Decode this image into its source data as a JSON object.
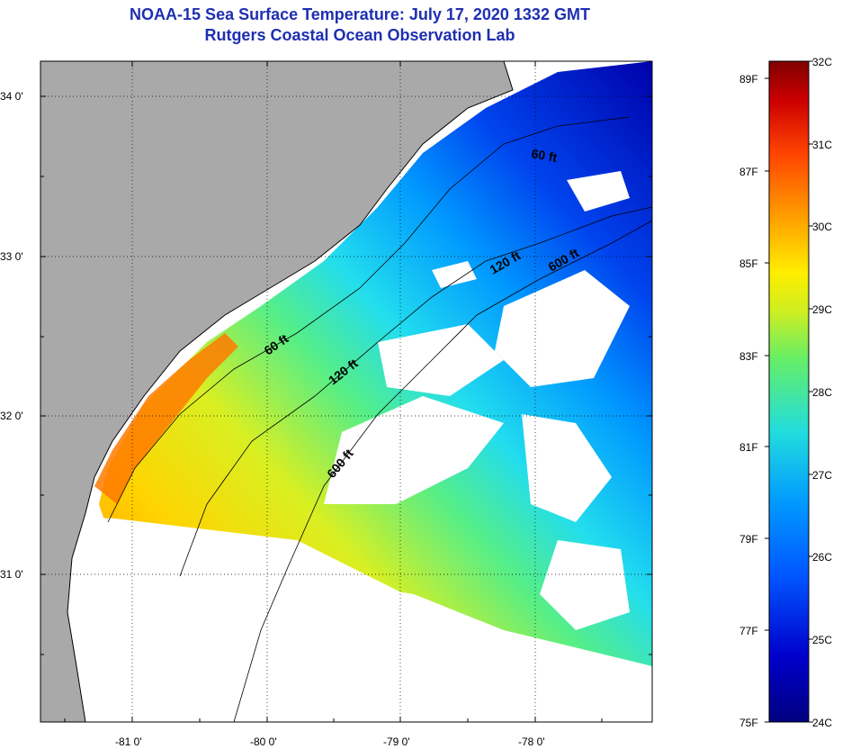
{
  "title": {
    "line1": "NOAA-15 Sea Surface Temperature:  July 17, 2020 1332 GMT",
    "line2": "Rutgers Coastal Ocean Observation Lab"
  },
  "axes": {
    "lat_ticks": [
      "34 0'",
      "33 0'",
      "32 0'",
      "31 0'"
    ],
    "lon_ticks": [
      "-81 0'",
      "-80 0'",
      "-79 0'",
      "-78 0'"
    ]
  },
  "contours": {
    "labels": [
      "60 ft",
      "120 ft",
      "600 ft",
      "120 ft",
      "600 ft",
      "60 ft"
    ]
  },
  "colorbar": {
    "celsius": [
      "32C",
      "31C",
      "30C",
      "29C",
      "28C",
      "27C",
      "26C",
      "25C",
      "24C"
    ],
    "fahrenheit": [
      "89F",
      "87F",
      "85F",
      "83F",
      "81F",
      "79F",
      "77F",
      "75F"
    ],
    "colors": [
      "#800000",
      "#cc0000",
      "#ff5500",
      "#ff9900",
      "#ffdd00",
      "#ccee22",
      "#66ee66",
      "#22dddd",
      "#0099ff",
      "#0044ee",
      "#0000aa",
      "#000080"
    ]
  },
  "colors": {
    "land": "#a9a9a9",
    "no_data": "#ffffff",
    "title": "#1f2fb0"
  }
}
